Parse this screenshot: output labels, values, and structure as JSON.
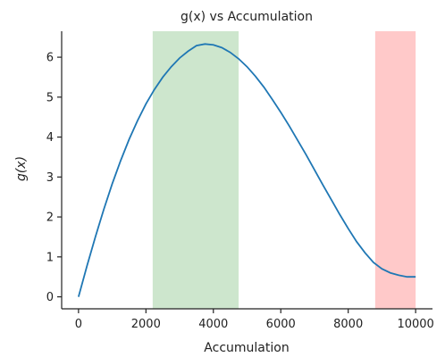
{
  "chart_data": {
    "type": "line",
    "title": "g(x) vs Accumulation",
    "xlabel": "Accumulation",
    "ylabel": "g(x)",
    "xlim": [
      -500,
      10500
    ],
    "ylim": [
      -0.3,
      6.65
    ],
    "xticks": [
      0,
      2000,
      4000,
      6000,
      8000,
      10000
    ],
    "yticks": [
      0,
      1,
      2,
      3,
      4,
      5,
      6
    ],
    "grid": false,
    "legend": "none",
    "series": [
      {
        "color": "#1f77b4",
        "x": [
          0,
          250,
          500,
          750,
          1000,
          1250,
          1500,
          1750,
          2000,
          2250,
          2500,
          2750,
          3000,
          3250,
          3500,
          3750,
          4000,
          4250,
          4500,
          4750,
          5000,
          5250,
          5500,
          5750,
          6000,
          6250,
          6500,
          6750,
          7000,
          7250,
          7500,
          7750,
          8000,
          8250,
          8500,
          8750,
          9000,
          9250,
          9500,
          9750,
          10000
        ],
        "y": [
          0.0,
          0.77,
          1.5,
          2.19,
          2.83,
          3.41,
          3.94,
          4.41,
          4.83,
          5.19,
          5.5,
          5.76,
          5.98,
          6.15,
          6.29,
          6.33,
          6.31,
          6.24,
          6.12,
          5.96,
          5.76,
          5.52,
          5.25,
          4.94,
          4.62,
          4.28,
          3.92,
          3.56,
          3.18,
          2.8,
          2.43,
          2.06,
          1.71,
          1.38,
          1.1,
          0.86,
          0.7,
          0.6,
          0.54,
          0.5,
          0.5
        ]
      }
    ],
    "bands": [
      {
        "x0": 2200,
        "x1": 4750,
        "color": "#cde6cd"
      },
      {
        "x0": 8800,
        "x1": 10000,
        "color": "#ffc9c9"
      }
    ]
  }
}
